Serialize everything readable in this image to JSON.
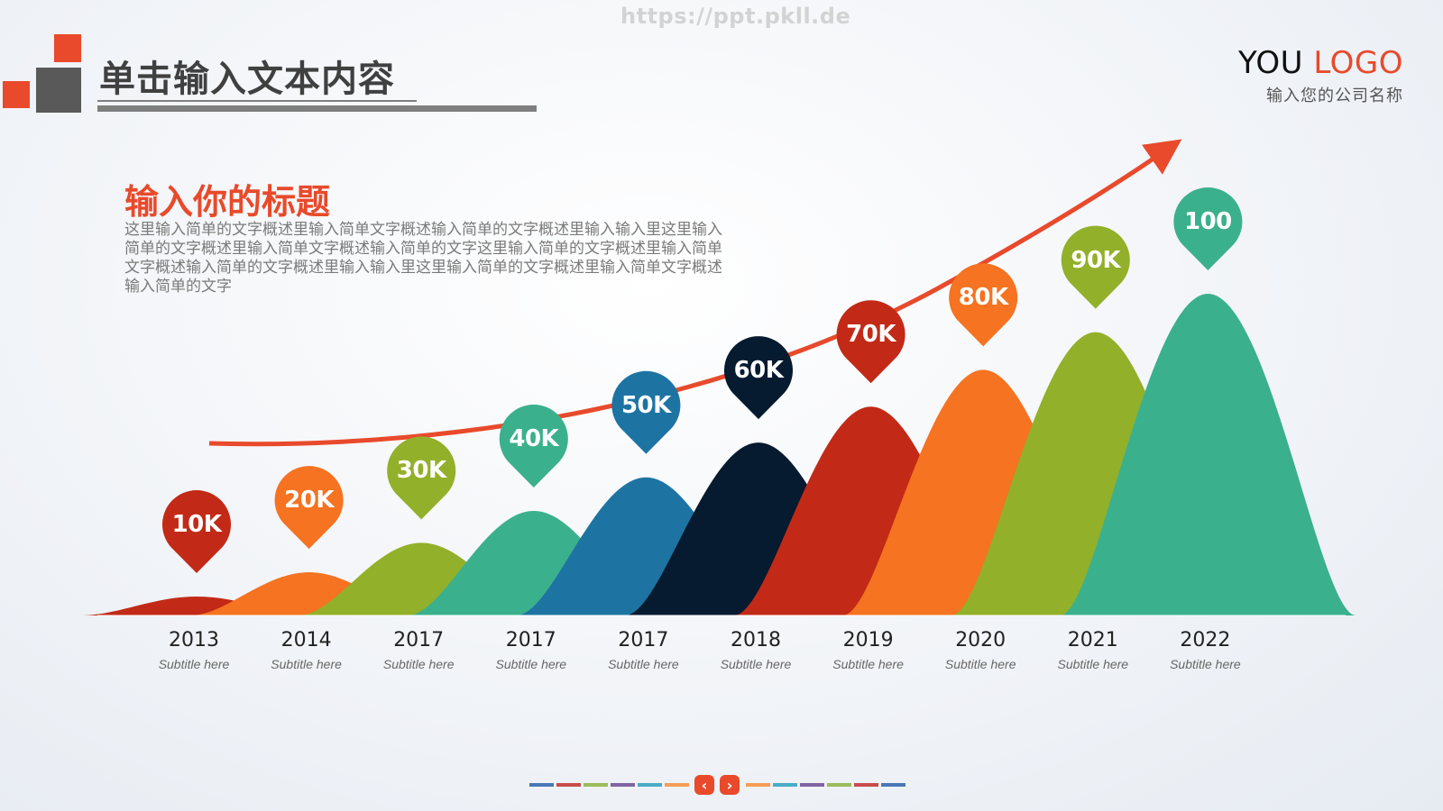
{
  "watermark": "https://ppt.pkll.de",
  "header": {
    "title": "单击输入文本内容"
  },
  "logo": {
    "main_prefix": "YOU",
    "main_accent": "LOGO",
    "subtitle": "输入您的公司名称"
  },
  "section": {
    "title": "输入你的标题",
    "body": "这里输入简单的文字概述里输入简单文字概述输入简单的文字概述里输入输入里这里输入简单的文字概述里输入简单文字概述输入简单的文字这里输入简单的文字概述里输入简单文字概述输入简单的文字概述里输入输入里这里输入简单的文字概述里输入简单文字概述输入简单的文字"
  },
  "chart_data": {
    "type": "area",
    "title": "",
    "xlabel": "",
    "ylabel": "",
    "categories": [
      "2013",
      "2014",
      "2017",
      "2017",
      "2017",
      "2018",
      "2019",
      "2020",
      "2021",
      "2022"
    ],
    "subtitles": [
      "Subtitle here",
      "Subtitle here",
      "Subtitle here",
      "Subtitle here",
      "Subtitle here",
      "Subtitle here",
      "Subtitle here",
      "Subtitle here",
      "Subtitle here",
      "Subtitle here"
    ],
    "value_labels": [
      "10K",
      "20K",
      "30K",
      "40K",
      "50K",
      "60K",
      "70K",
      "80K",
      "90K",
      "100"
    ],
    "values": [
      10,
      20,
      30,
      40,
      50,
      60,
      70,
      80,
      90,
      100
    ],
    "colors": [
      "#c22a17",
      "#f57321",
      "#93b02a",
      "#3bb08d",
      "#1d74a2",
      "#061a30",
      "#c22a17",
      "#f57321",
      "#93b02a",
      "#3bb08d"
    ],
    "trend_arrow": {
      "color": "#e84a2b",
      "direction": "up-right"
    },
    "grid": false,
    "legend": "none"
  },
  "pager": {
    "prev_label": "‹",
    "next_label": "›",
    "left_dashes": [
      "#4a78b5",
      "#c84c4c",
      "#9cbb5c",
      "#8064a2",
      "#4bacc6",
      "#f59d56"
    ],
    "right_dashes": [
      "#f59d56",
      "#4bacc6",
      "#8064a2",
      "#9cbb5c",
      "#c84c4c",
      "#4a78b5"
    ]
  }
}
